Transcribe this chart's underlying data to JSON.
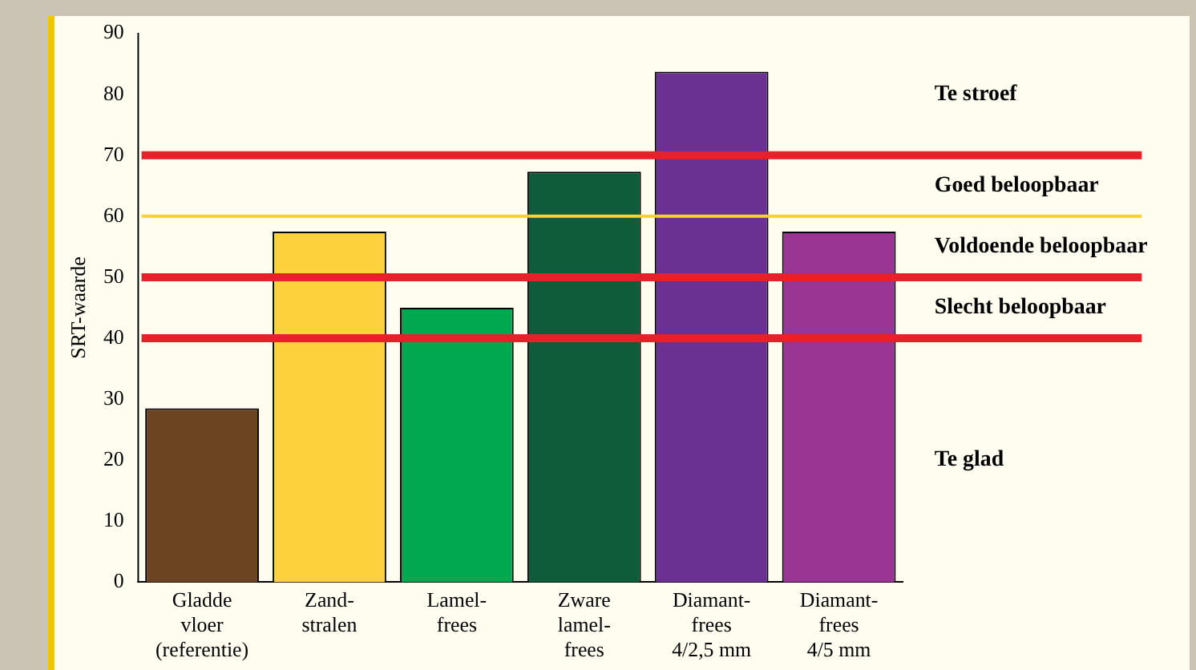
{
  "chart_data": {
    "type": "bar",
    "ylabel": "SRT-waarde",
    "categories": [
      "Gladde\nvloer\n(referentie)",
      "Zand-\nstralen",
      "Lamel-\nfrees",
      "Zware\nlamel-\nfrees",
      "Diamant-\nfrees\n4/2,5 mm",
      "Diamant-\nfrees\n4/5 mm"
    ],
    "values": [
      28.5,
      57.5,
      45,
      67.3,
      83.7,
      57.5
    ],
    "colors": [
      "#6b4421",
      "#fdd13b",
      "#00a94f",
      "#0f5c38",
      "#6a3193",
      "#9b3594"
    ],
    "ylim": [
      0,
      90
    ],
    "yticks": [
      0,
      10,
      20,
      30,
      40,
      50,
      60,
      70,
      80,
      90
    ],
    "grid": false,
    "legend": false,
    "ref_lines": [
      {
        "axis": "y",
        "value": 70,
        "color": "#e8202a"
      },
      {
        "axis": "y",
        "value": 60,
        "color": "#f5d327"
      },
      {
        "axis": "y",
        "value": 50,
        "color": "#e8202a"
      },
      {
        "axis": "y",
        "value": 40,
        "color": "#e8202a"
      }
    ],
    "annotations": [
      "Te stroef",
      "Goed beloopbaar",
      "Voldoende beloopbaar",
      "Slecht beloopbaar",
      "Te glad"
    ]
  }
}
